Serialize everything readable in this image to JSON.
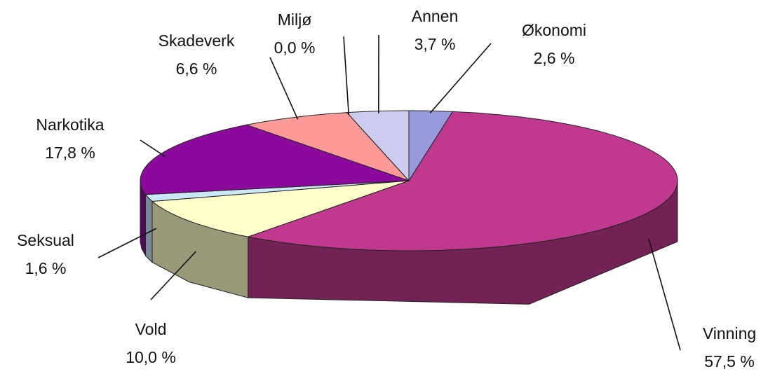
{
  "chart_data": {
    "type": "pie3d",
    "categories": [
      "Økonomi",
      "Vinning",
      "Vold",
      "Seksual",
      "Narkotika",
      "Skadeverk",
      "Miljø",
      "Annen"
    ],
    "values": [
      2.6,
      57.5,
      10.0,
      1.6,
      17.8,
      6.6,
      0.0,
      3.7
    ],
    "value_labels": [
      "2,6 %",
      "57,5 %",
      "10,0 %",
      "1,6 %",
      "17,8 %",
      "6,6 %",
      "0,0 %",
      "3,7 %"
    ],
    "colors": [
      "#9999dd",
      "#c0398e",
      "#ffffcc",
      "#cce8f8",
      "#8b0a9c",
      "#ff9a9a",
      "#444444",
      "#ccccee"
    ]
  }
}
